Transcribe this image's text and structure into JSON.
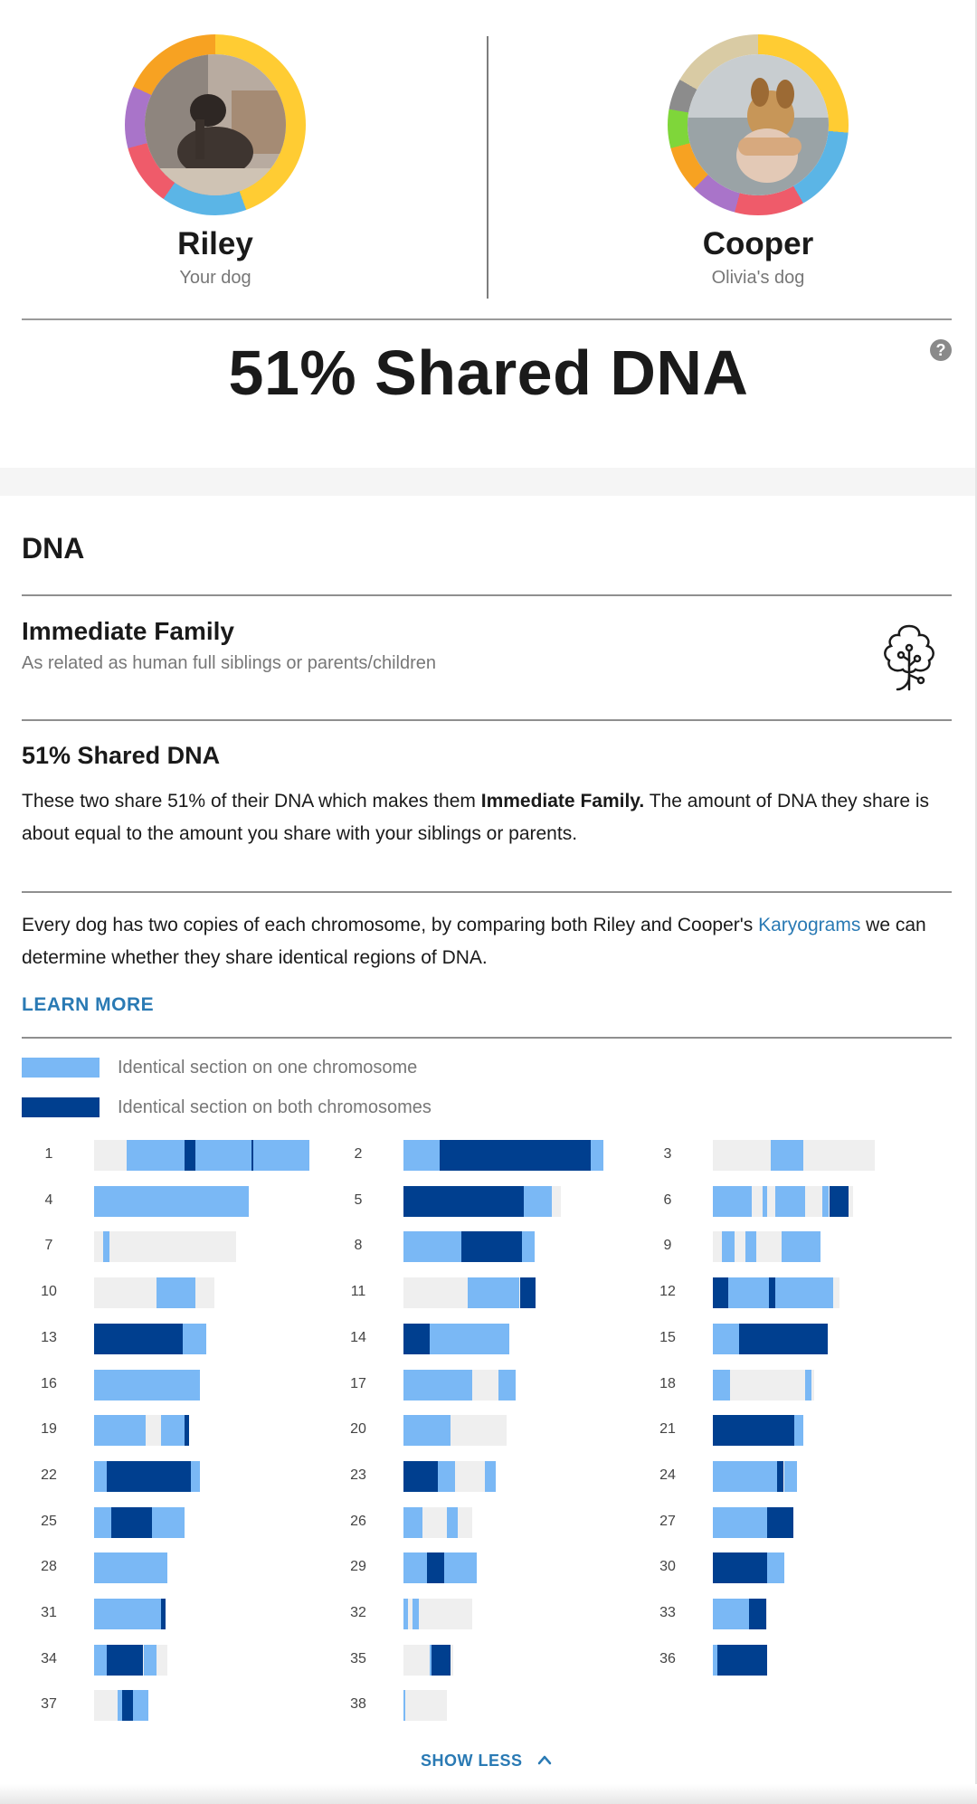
{
  "dogs": [
    {
      "name": "Riley",
      "subtitle": "Your dog"
    },
    {
      "name": "Cooper",
      "subtitle": "Olivia's dog"
    }
  ],
  "headline": "51% Shared DNA",
  "help_icon": "question-circle-icon",
  "section_title": "DNA",
  "relationship": {
    "title": "Immediate Family",
    "subtitle": "As related as human full siblings or parents/children",
    "icon": "family-tree-icon"
  },
  "shared": {
    "title": "51% Shared DNA",
    "para_start": "These two share 51% of their DNA which makes them ",
    "para_bold": "Immediate Family.",
    "para_end": " The amount of DNA they share is about equal to the amount you share with your siblings or parents."
  },
  "karyogram_info": {
    "para_start": "Every dog has two copies of each chromosome, by comparing both Riley and Cooper's ",
    "link": "Karyograms",
    "para_end": " we can determine whether they share identical regions of DNA."
  },
  "learn_more": "LEARN MORE",
  "legend": [
    {
      "label": "Identical section on one chromosome",
      "color": "#7ab8f5"
    },
    {
      "label": "Identical section on both chromosomes",
      "color": "#003f8f"
    }
  ],
  "colors": {
    "base": "#efefef",
    "one": "#7ab8f5",
    "both": "#003f8f",
    "accent": "#2a7ab4"
  },
  "chromosomes": [
    {
      "id": "1",
      "length": 1.0,
      "segments": [
        [
          0.15,
          0.42,
          1
        ],
        [
          0.42,
          0.47,
          2
        ],
        [
          0.47,
          0.73,
          1
        ],
        [
          0.73,
          0.74,
          2
        ],
        [
          0.74,
          1.0,
          1
        ]
      ]
    },
    {
      "id": "2",
      "length": 0.93,
      "segments": [
        [
          0.0,
          0.17,
          1
        ],
        [
          0.17,
          0.87,
          2
        ],
        [
          0.87,
          0.93,
          1
        ]
      ]
    },
    {
      "id": "3",
      "length": 0.75,
      "segments": [
        [
          0.27,
          0.42,
          1
        ]
      ]
    },
    {
      "id": "4",
      "length": 0.72,
      "segments": [
        [
          0.0,
          0.72,
          1
        ]
      ]
    },
    {
      "id": "5",
      "length": 0.73,
      "segments": [
        [
          0.0,
          0.56,
          2
        ],
        [
          0.56,
          0.69,
          1
        ]
      ]
    },
    {
      "id": "6",
      "length": 0.65,
      "segments": [
        [
          0.0,
          0.18,
          1
        ],
        [
          0.23,
          0.25,
          1
        ],
        [
          0.29,
          0.43,
          1
        ],
        [
          0.51,
          0.54,
          1
        ],
        [
          0.54,
          0.63,
          2
        ]
      ]
    },
    {
      "id": "7",
      "length": 0.66,
      "segments": [
        [
          0.04,
          0.07,
          1
        ]
      ]
    },
    {
      "id": "8",
      "length": 0.61,
      "segments": [
        [
          0.0,
          0.27,
          1
        ],
        [
          0.27,
          0.55,
          2
        ],
        [
          0.55,
          0.61,
          1
        ]
      ]
    },
    {
      "id": "9",
      "length": 0.5,
      "segments": [
        [
          0.04,
          0.1,
          1
        ],
        [
          0.15,
          0.2,
          1
        ],
        [
          0.32,
          0.5,
          1
        ]
      ]
    },
    {
      "id": "10",
      "length": 0.56,
      "segments": [
        [
          0.29,
          0.47,
          1
        ]
      ]
    },
    {
      "id": "11",
      "length": 0.61,
      "segments": [
        [
          0.3,
          0.54,
          1
        ],
        [
          0.54,
          0.61,
          2
        ]
      ]
    },
    {
      "id": "12",
      "length": 0.59,
      "segments": [
        [
          0.0,
          0.07,
          2
        ],
        [
          0.07,
          0.26,
          1
        ],
        [
          0.26,
          0.29,
          2
        ],
        [
          0.29,
          0.56,
          1
        ]
      ]
    },
    {
      "id": "13",
      "length": 0.52,
      "segments": [
        [
          0.0,
          0.41,
          2
        ],
        [
          0.41,
          0.52,
          1
        ]
      ]
    },
    {
      "id": "14",
      "length": 0.49,
      "segments": [
        [
          0.0,
          0.12,
          2
        ],
        [
          0.12,
          0.49,
          1
        ]
      ]
    },
    {
      "id": "15",
      "length": 0.53,
      "segments": [
        [
          0.0,
          0.12,
          1
        ],
        [
          0.12,
          0.53,
          2
        ]
      ]
    },
    {
      "id": "16",
      "length": 0.49,
      "segments": [
        [
          0.0,
          0.49,
          1
        ]
      ]
    },
    {
      "id": "17",
      "length": 0.52,
      "segments": [
        [
          0.0,
          0.32,
          1
        ],
        [
          0.44,
          0.52,
          1
        ]
      ]
    },
    {
      "id": "18",
      "length": 0.47,
      "segments": [
        [
          0.0,
          0.08,
          1
        ],
        [
          0.43,
          0.46,
          1
        ]
      ]
    },
    {
      "id": "19",
      "length": 0.44,
      "segments": [
        [
          0.0,
          0.24,
          1
        ],
        [
          0.31,
          0.42,
          1
        ],
        [
          0.42,
          0.44,
          2
        ]
      ]
    },
    {
      "id": "20",
      "length": 0.48,
      "segments": [
        [
          0.0,
          0.22,
          1
        ]
      ]
    },
    {
      "id": "21",
      "length": 0.42,
      "segments": [
        [
          0.0,
          0.38,
          2
        ],
        [
          0.38,
          0.42,
          1
        ]
      ]
    },
    {
      "id": "22",
      "length": 0.49,
      "segments": [
        [
          0.0,
          0.06,
          1
        ],
        [
          0.06,
          0.45,
          2
        ],
        [
          0.45,
          0.49,
          1
        ]
      ]
    },
    {
      "id": "23",
      "length": 0.43,
      "segments": [
        [
          0.0,
          0.16,
          2
        ],
        [
          0.16,
          0.24,
          1
        ],
        [
          0.38,
          0.43,
          1
        ]
      ]
    },
    {
      "id": "24",
      "length": 0.39,
      "segments": [
        [
          0.0,
          0.3,
          1
        ],
        [
          0.3,
          0.33,
          2
        ],
        [
          0.33,
          0.39,
          1
        ]
      ]
    },
    {
      "id": "25",
      "length": 0.42,
      "segments": [
        [
          0.0,
          0.08,
          1
        ],
        [
          0.08,
          0.27,
          2
        ],
        [
          0.27,
          0.42,
          1
        ]
      ]
    },
    {
      "id": "26",
      "length": 0.32,
      "segments": [
        [
          0.0,
          0.09,
          1
        ],
        [
          0.2,
          0.25,
          1
        ]
      ]
    },
    {
      "id": "27",
      "length": 0.37,
      "segments": [
        [
          0.0,
          0.25,
          1
        ],
        [
          0.25,
          0.37,
          2
        ]
      ]
    },
    {
      "id": "28",
      "length": 0.34,
      "segments": [
        [
          0.0,
          0.34,
          1
        ]
      ]
    },
    {
      "id": "29",
      "length": 0.34,
      "segments": [
        [
          0.0,
          0.11,
          1
        ],
        [
          0.11,
          0.19,
          2
        ],
        [
          0.19,
          0.34,
          1
        ]
      ]
    },
    {
      "id": "30",
      "length": 0.33,
      "segments": [
        [
          0.0,
          0.25,
          2
        ],
        [
          0.25,
          0.33,
          1
        ]
      ]
    },
    {
      "id": "31",
      "length": 0.33,
      "segments": [
        [
          0.0,
          0.31,
          1
        ],
        [
          0.31,
          0.33,
          2
        ]
      ]
    },
    {
      "id": "32",
      "length": 0.32,
      "segments": [
        [
          0.0,
          0.02,
          1
        ],
        [
          0.04,
          0.07,
          1
        ]
      ]
    },
    {
      "id": "33",
      "length": 0.25,
      "segments": [
        [
          0.0,
          0.17,
          1
        ],
        [
          0.17,
          0.25,
          2
        ]
      ]
    },
    {
      "id": "34",
      "length": 0.34,
      "segments": [
        [
          0.0,
          0.06,
          1
        ],
        [
          0.06,
          0.23,
          2
        ],
        [
          0.23,
          0.29,
          1
        ]
      ]
    },
    {
      "id": "35",
      "length": 0.23,
      "segments": [
        [
          0.12,
          0.13,
          1
        ],
        [
          0.13,
          0.22,
          2
        ]
      ]
    },
    {
      "id": "36",
      "length": 0.25,
      "segments": [
        [
          0.0,
          0.02,
          1
        ],
        [
          0.02,
          0.25,
          2
        ]
      ]
    },
    {
      "id": "37",
      "length": 0.25,
      "segments": [
        [
          0.11,
          0.13,
          1
        ],
        [
          0.13,
          0.18,
          2
        ],
        [
          0.18,
          0.25,
          1
        ]
      ]
    },
    {
      "id": "38",
      "length": 0.2,
      "segments": [
        [
          0.0,
          0.01,
          1
        ]
      ]
    }
  ],
  "show_less": "SHOW LESS"
}
